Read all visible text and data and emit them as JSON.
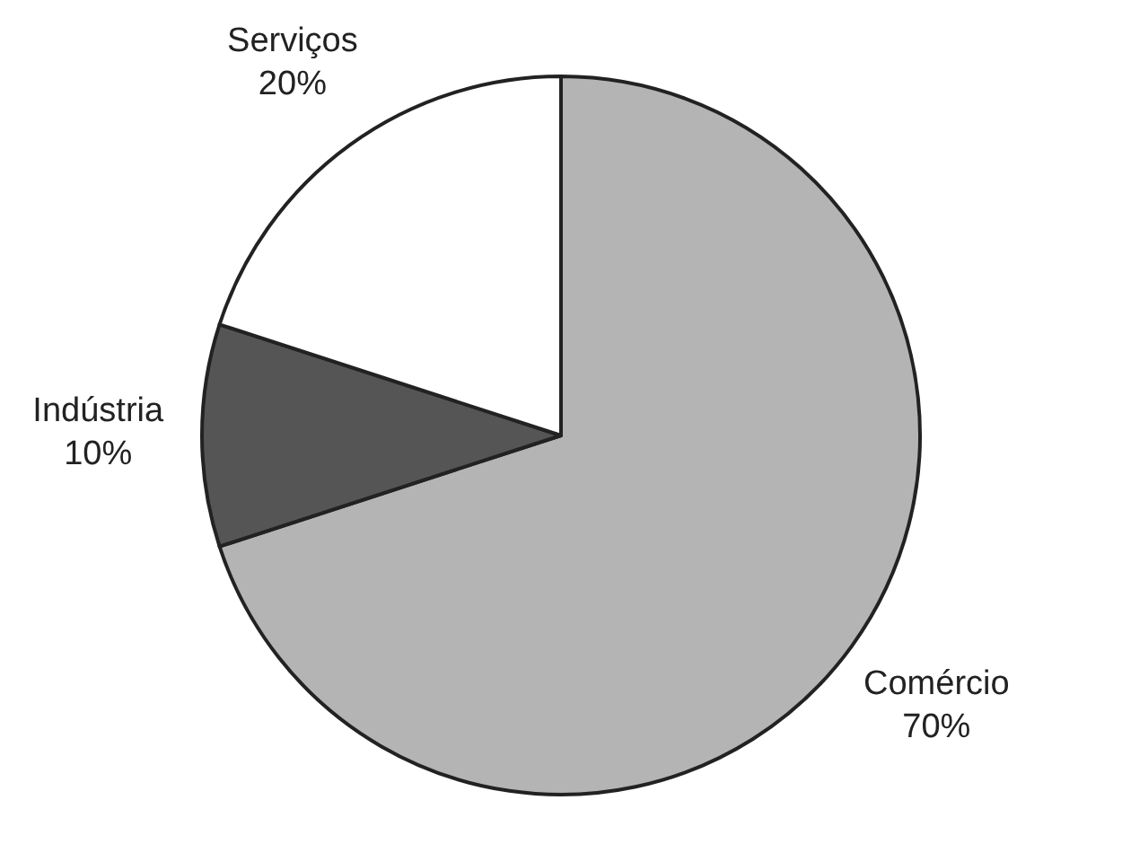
{
  "chart_data": {
    "type": "pie",
    "categories": [
      "Comércio",
      "Indústria",
      "Serviços"
    ],
    "values": [
      70,
      10,
      20
    ],
    "colors": [
      "#b4b4b4",
      "#555555",
      "#ffffff"
    ],
    "value_labels": [
      "70%",
      "10%",
      "20%"
    ]
  }
}
